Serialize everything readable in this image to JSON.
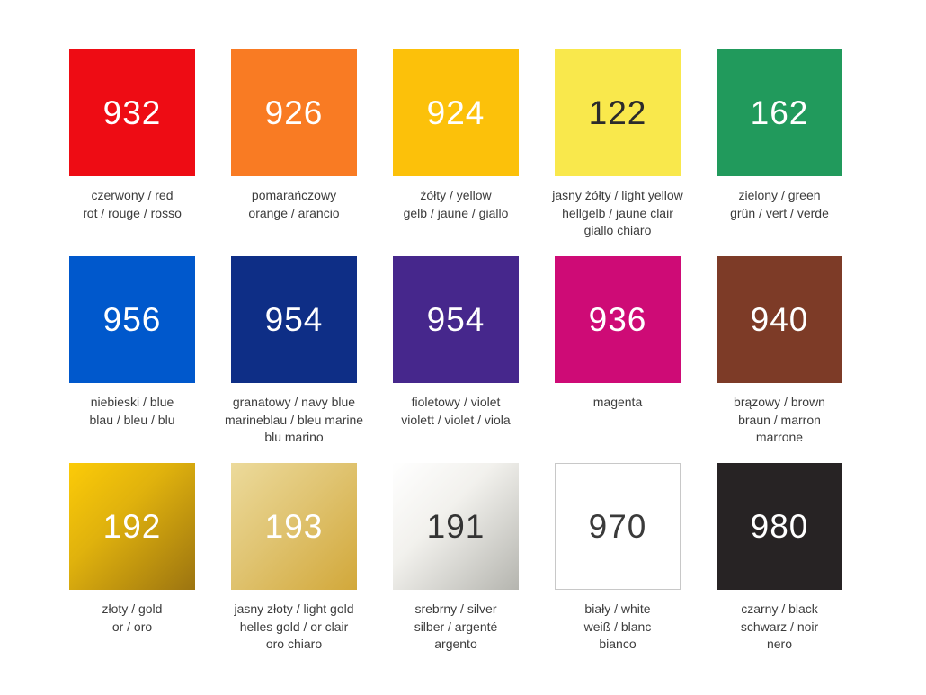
{
  "palette": {
    "label_text_color": "#3c3c3c",
    "swatches": [
      {
        "number": "932",
        "css_background": "#ee0c14",
        "number_color": "#ffffff",
        "labels": [
          "czerwony / red",
          "rot / rouge / rosso"
        ]
      },
      {
        "number": "926",
        "css_background": "#f97b23",
        "number_color": "#ffffff",
        "labels": [
          "pomarańczowy",
          "orange / arancio"
        ]
      },
      {
        "number": "924",
        "css_background": "#fcc10a",
        "number_color": "#ffffff",
        "labels": [
          "żółty / yellow",
          "gelb / jaune / giallo"
        ]
      },
      {
        "number": "122",
        "css_background": "#f9e84c",
        "number_color": "#2b2b2b",
        "labels": [
          "jasny żółty / light yellow",
          "hellgelb / jaune clair",
          "giallo chiaro"
        ]
      },
      {
        "number": "162",
        "css_background": "#219a5c",
        "number_color": "#ffffff",
        "labels": [
          "zielony / green",
          "grün / vert / verde"
        ]
      },
      {
        "number": "956",
        "css_background": "#0058cc",
        "number_color": "#ffffff",
        "labels": [
          "niebieski / blue",
          "blau / bleu / blu"
        ]
      },
      {
        "number": "954",
        "css_background": "#0e2e86",
        "number_color": "#ffffff",
        "labels": [
          "granatowy / navy blue",
          "marineblau / bleu marine",
          "blu marino"
        ]
      },
      {
        "number": "954",
        "css_background": "#46278c",
        "number_color": "#ffffff",
        "labels": [
          "fioletowy / violet",
          "violett / violet / viola"
        ]
      },
      {
        "number": "936",
        "css_background": "#ce0b76",
        "number_color": "#ffffff",
        "labels": [
          "magenta"
        ]
      },
      {
        "number": "940",
        "css_background": "#7d3b27",
        "number_color": "#ffffff",
        "labels": [
          "brązowy / brown",
          "braun / marron",
          "marrone"
        ]
      },
      {
        "number": "192",
        "css_background": "linear-gradient(135deg, #fccb08 0%, #e0b20d 40%, #9c7410 100%)",
        "number_color": "#ffffff",
        "labels": [
          "złoty / gold",
          "or / oro"
        ]
      },
      {
        "number": "193",
        "css_background": "linear-gradient(135deg, #ecda9b 0%, #e0c472 45%, #d2a83a 100%)",
        "number_color": "#ffffff",
        "labels": [
          "jasny złoty / light gold",
          "helles gold / or clair",
          "oro chiaro"
        ]
      },
      {
        "number": "191",
        "css_background": "linear-gradient(135deg, #ffffff 0%, #f2f1ed 40%, #b5b5af 100%)",
        "number_color": "#333333",
        "labels": [
          "srebrny / silver",
          "silber / argenté",
          "argento"
        ]
      },
      {
        "number": "970",
        "css_background": "#ffffff",
        "number_color": "#3a3a3a",
        "border_color": "#c8c8c8",
        "labels": [
          "biały / white",
          "weiß / blanc",
          "bianco"
        ]
      },
      {
        "number": "980",
        "css_background": "#272324",
        "number_color": "#ffffff",
        "labels": [
          "czarny / black",
          "schwarz / noir",
          "nero"
        ]
      }
    ]
  }
}
